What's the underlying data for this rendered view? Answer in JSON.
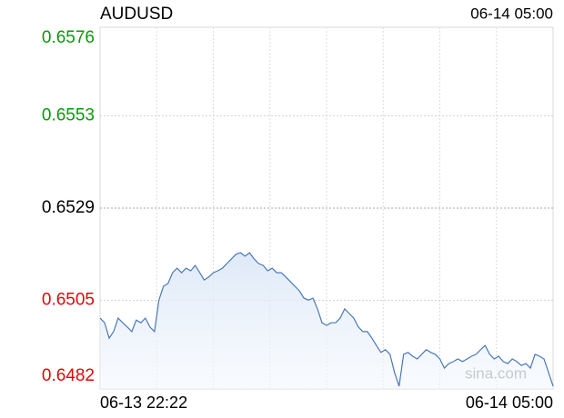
{
  "chart_data": {
    "type": "line",
    "title": "AUDUSD",
    "timestamp": "06-14 05:00",
    "watermark": "sina.com",
    "x": [
      "06-13 22:22",
      null,
      null,
      null,
      null,
      null,
      null,
      null,
      null,
      null,
      null,
      null,
      null,
      null,
      null,
      null,
      null,
      null,
      null,
      null,
      null,
      null,
      null,
      null,
      null,
      null,
      null,
      null,
      null,
      null,
      null,
      null,
      null,
      null,
      null,
      null,
      null,
      null,
      null,
      null,
      null,
      null,
      null,
      null,
      null,
      null,
      null,
      null,
      null,
      null,
      null,
      null,
      null,
      null,
      null,
      null,
      null,
      null,
      null,
      null,
      null,
      null,
      null,
      null,
      null,
      null,
      null,
      null,
      null,
      null,
      null,
      null,
      null,
      null,
      null,
      null,
      null,
      null,
      null,
      null,
      null,
      null,
      null,
      null,
      null,
      null,
      null,
      null,
      null,
      null,
      null,
      null,
      null,
      null,
      null,
      null,
      null,
      null,
      null,
      null,
      "06-14 05:00"
    ],
    "series": [
      {
        "name": "AUDUSD",
        "color": "#4a78b8",
        "values": [
          0.65004,
          0.64992,
          0.64952,
          0.64969,
          0.65004,
          0.64992,
          0.64981,
          0.64969,
          0.64999,
          0.64992,
          0.65004,
          0.64981,
          0.64969,
          0.65051,
          0.65087,
          0.65094,
          0.65122,
          0.65134,
          0.65122,
          0.65134,
          0.65127,
          0.65141,
          0.65122,
          0.65103,
          0.65111,
          0.65122,
          0.65127,
          0.65134,
          0.65146,
          0.65158,
          0.6517,
          0.65174,
          0.65165,
          0.65174,
          0.65158,
          0.65146,
          0.65141,
          0.65127,
          0.65134,
          0.65122,
          0.65122,
          0.65111,
          0.65099,
          0.65087,
          0.65075,
          0.65056,
          0.65051,
          0.65056,
          0.65028,
          0.64992,
          0.64985,
          0.64992,
          0.64992,
          0.65004,
          0.65028,
          0.65016,
          0.65004,
          0.64981,
          0.64969,
          0.64969,
          0.64952,
          0.64933,
          0.64915,
          0.64922,
          0.6491,
          0.64863,
          0.64827,
          0.6491,
          0.64915,
          0.64905,
          0.64898,
          0.6491,
          0.64922,
          0.64915,
          0.6491,
          0.64898,
          0.64874,
          0.64886,
          0.64891,
          0.64898,
          0.64891,
          0.64898,
          0.64905,
          0.6491,
          0.64922,
          0.64933,
          0.6491,
          0.64898,
          0.64905,
          0.64891,
          0.64886,
          0.64898,
          0.64891,
          0.64881,
          0.64886,
          0.64874,
          0.6491,
          0.64905,
          0.64898,
          0.64863,
          0.64827
        ]
      }
    ],
    "ylim": [
      0.6482,
      0.6576
    ],
    "yticks": [
      0.6576,
      0.6553,
      0.6529,
      0.6505,
      0.6482
    ],
    "tick_colors": [
      "#0a9a0a",
      "#0a9a0a",
      "#000000",
      "#dd0a0a",
      "#dd0a0a"
    ],
    "grid": true
  }
}
